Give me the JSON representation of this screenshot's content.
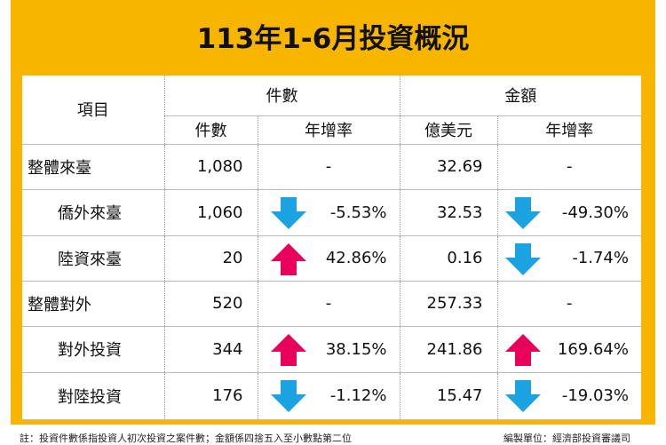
{
  "header": {
    "title": "113年1-6月投資概況"
  },
  "table": {
    "head": {
      "item": "項目",
      "count_group": "件數",
      "amount_group": "金額",
      "count": "件數",
      "count_growth": "年增率",
      "amount": "億美元",
      "amount_growth": "年增率"
    },
    "rows": [
      [
        "整體來臺",
        "1,080",
        "-",
        "32.69",
        "-"
      ],
      [
        "僑外來臺",
        "1,060",
        "-5.53%",
        "32.53",
        "-49.30%"
      ],
      [
        "陸資來臺",
        "20",
        "42.86%",
        "0.16",
        "-1.74%"
      ],
      [
        "整體對外",
        "520",
        "-",
        "257.33",
        "-"
      ],
      [
        "對外投資",
        "344",
        "38.15%",
        "241.86",
        "169.64%"
      ],
      [
        "對陸投資",
        "176",
        "-1.12%",
        "15.47",
        "-19.03%"
      ]
    ]
  },
  "footer": {
    "note": "註：投資件數係指投資人初次投資之案件數；金額係四捨五入至小數點第二位",
    "source": "編製單位：經濟部投資審議司"
  }
}
